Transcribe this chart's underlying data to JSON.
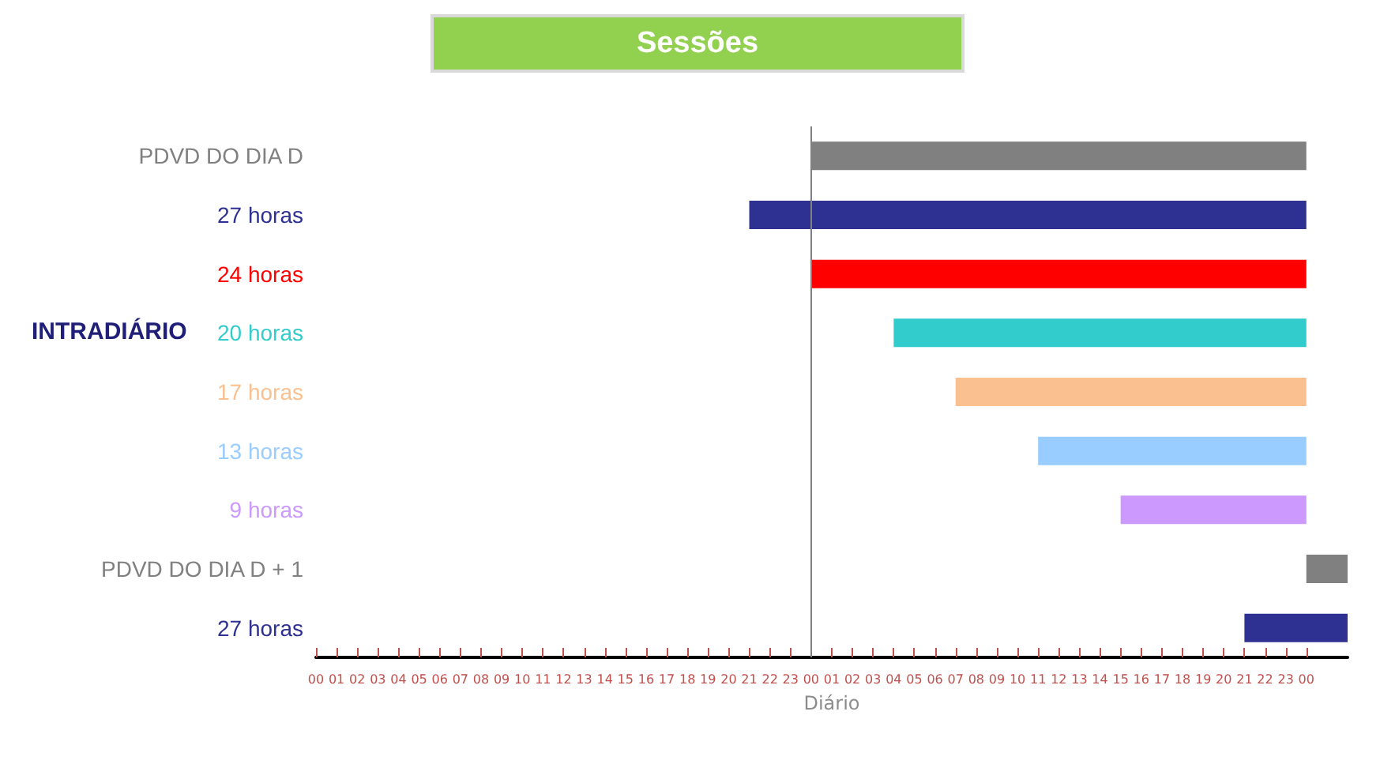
{
  "chart_data": {
    "type": "bar",
    "orientation": "horizontal",
    "title": "Sessões",
    "xlabel": "Diário",
    "categories": [
      "PDVD DO DIA D",
      "27 horas",
      "24 horas",
      "20 horas",
      "17 horas",
      "13 horas",
      "9 horas",
      "PDVD DO DIA D + 1",
      "27 horas"
    ],
    "values": [
      24,
      27,
      24,
      20,
      17,
      13,
      9,
      2,
      5
    ],
    "base": [
      24,
      21,
      24,
      28,
      31,
      35,
      39,
      48,
      45
    ],
    "colors": [
      "#808080",
      "#2e3192",
      "#ff0000",
      "#33cccc",
      "#fac090",
      "#99ccff",
      "#cc99ff",
      "#808080",
      "#2e3192"
    ],
    "xlim": [
      0,
      50
    ],
    "xticks": [
      {
        "value": 0,
        "label": "00"
      },
      {
        "value": 1,
        "label": "01"
      },
      {
        "value": 2,
        "label": "02"
      },
      {
        "value": 3,
        "label": "03"
      },
      {
        "value": 4,
        "label": "04"
      },
      {
        "value": 5,
        "label": "05"
      },
      {
        "value": 6,
        "label": "06"
      },
      {
        "value": 7,
        "label": "07"
      },
      {
        "value": 8,
        "label": "08"
      },
      {
        "value": 9,
        "label": "09"
      },
      {
        "value": 10,
        "label": "10"
      },
      {
        "value": 11,
        "label": "11"
      },
      {
        "value": 12,
        "label": "12"
      },
      {
        "value": 13,
        "label": "13"
      },
      {
        "value": 14,
        "label": "14"
      },
      {
        "value": 15,
        "label": "15"
      },
      {
        "value": 16,
        "label": "16"
      },
      {
        "value": 17,
        "label": "17"
      },
      {
        "value": 18,
        "label": "18"
      },
      {
        "value": 19,
        "label": "19"
      },
      {
        "value": 20,
        "label": "20"
      },
      {
        "value": 21,
        "label": "21"
      },
      {
        "value": 22,
        "label": "22"
      },
      {
        "value": 23,
        "label": "23"
      },
      {
        "value": 24,
        "label": "00"
      },
      {
        "value": 25,
        "label": "01"
      },
      {
        "value": 26,
        "label": "02"
      },
      {
        "value": 27,
        "label": "03"
      },
      {
        "value": 28,
        "label": "04"
      },
      {
        "value": 29,
        "label": "05"
      },
      {
        "value": 30,
        "label": "06"
      },
      {
        "value": 31,
        "label": "07"
      },
      {
        "value": 32,
        "label": "08"
      },
      {
        "value": 33,
        "label": "09"
      },
      {
        "value": 34,
        "label": "10"
      },
      {
        "value": 35,
        "label": "11"
      },
      {
        "value": 36,
        "label": "12"
      },
      {
        "value": 37,
        "label": "13"
      },
      {
        "value": 38,
        "label": "14"
      },
      {
        "value": 39,
        "label": "15"
      },
      {
        "value": 40,
        "label": "16"
      },
      {
        "value": 41,
        "label": "17"
      },
      {
        "value": 42,
        "label": "18"
      },
      {
        "value": 43,
        "label": "19"
      },
      {
        "value": 44,
        "label": "20"
      },
      {
        "value": 45,
        "label": "21"
      },
      {
        "value": 46,
        "label": "22"
      },
      {
        "value": 47,
        "label": "23"
      },
      {
        "value": 48,
        "label": "00"
      }
    ],
    "ref_lines": [
      {
        "axis": "x",
        "value": 24,
        "label": null,
        "color": "#808080"
      }
    ],
    "annotations": [
      "INTRADIÁRIO"
    ]
  }
}
